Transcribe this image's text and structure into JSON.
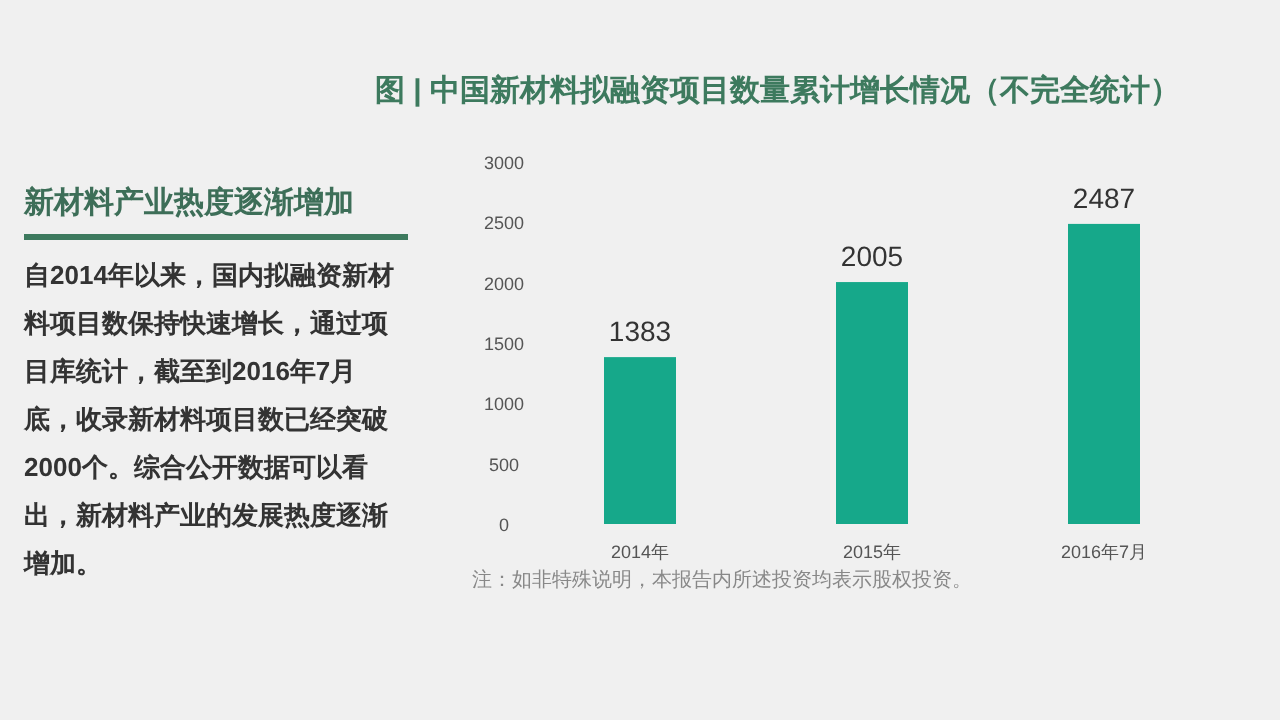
{
  "chart_data": {
    "type": "bar",
    "title": "图 | 中国新材料拟融资项目数量累计增长情况（不完全统计）",
    "categories": [
      "2014年",
      "2015年",
      "2016年7月"
    ],
    "values": [
      1383,
      2005,
      2487
    ],
    "color": "#16a88a",
    "ylim": [
      0,
      3000
    ],
    "yticks": [
      0,
      500,
      1000,
      1500,
      2000,
      2500,
      3000
    ],
    "grid": false,
    "data_labels": true,
    "annotations": [
      "新材料产业热度逐渐增加",
      "自2014年以来，国内拟融资新材料项目数保持快速增长，通过项目库统计，截至到2016年7月底，收录新材料项目数已经突破2000个。综合公开数据可以看出，新材料产业的发展热度逐渐增加。",
      "注：如非特殊说明，本报告内所述投资均表示股权投资。"
    ]
  }
}
